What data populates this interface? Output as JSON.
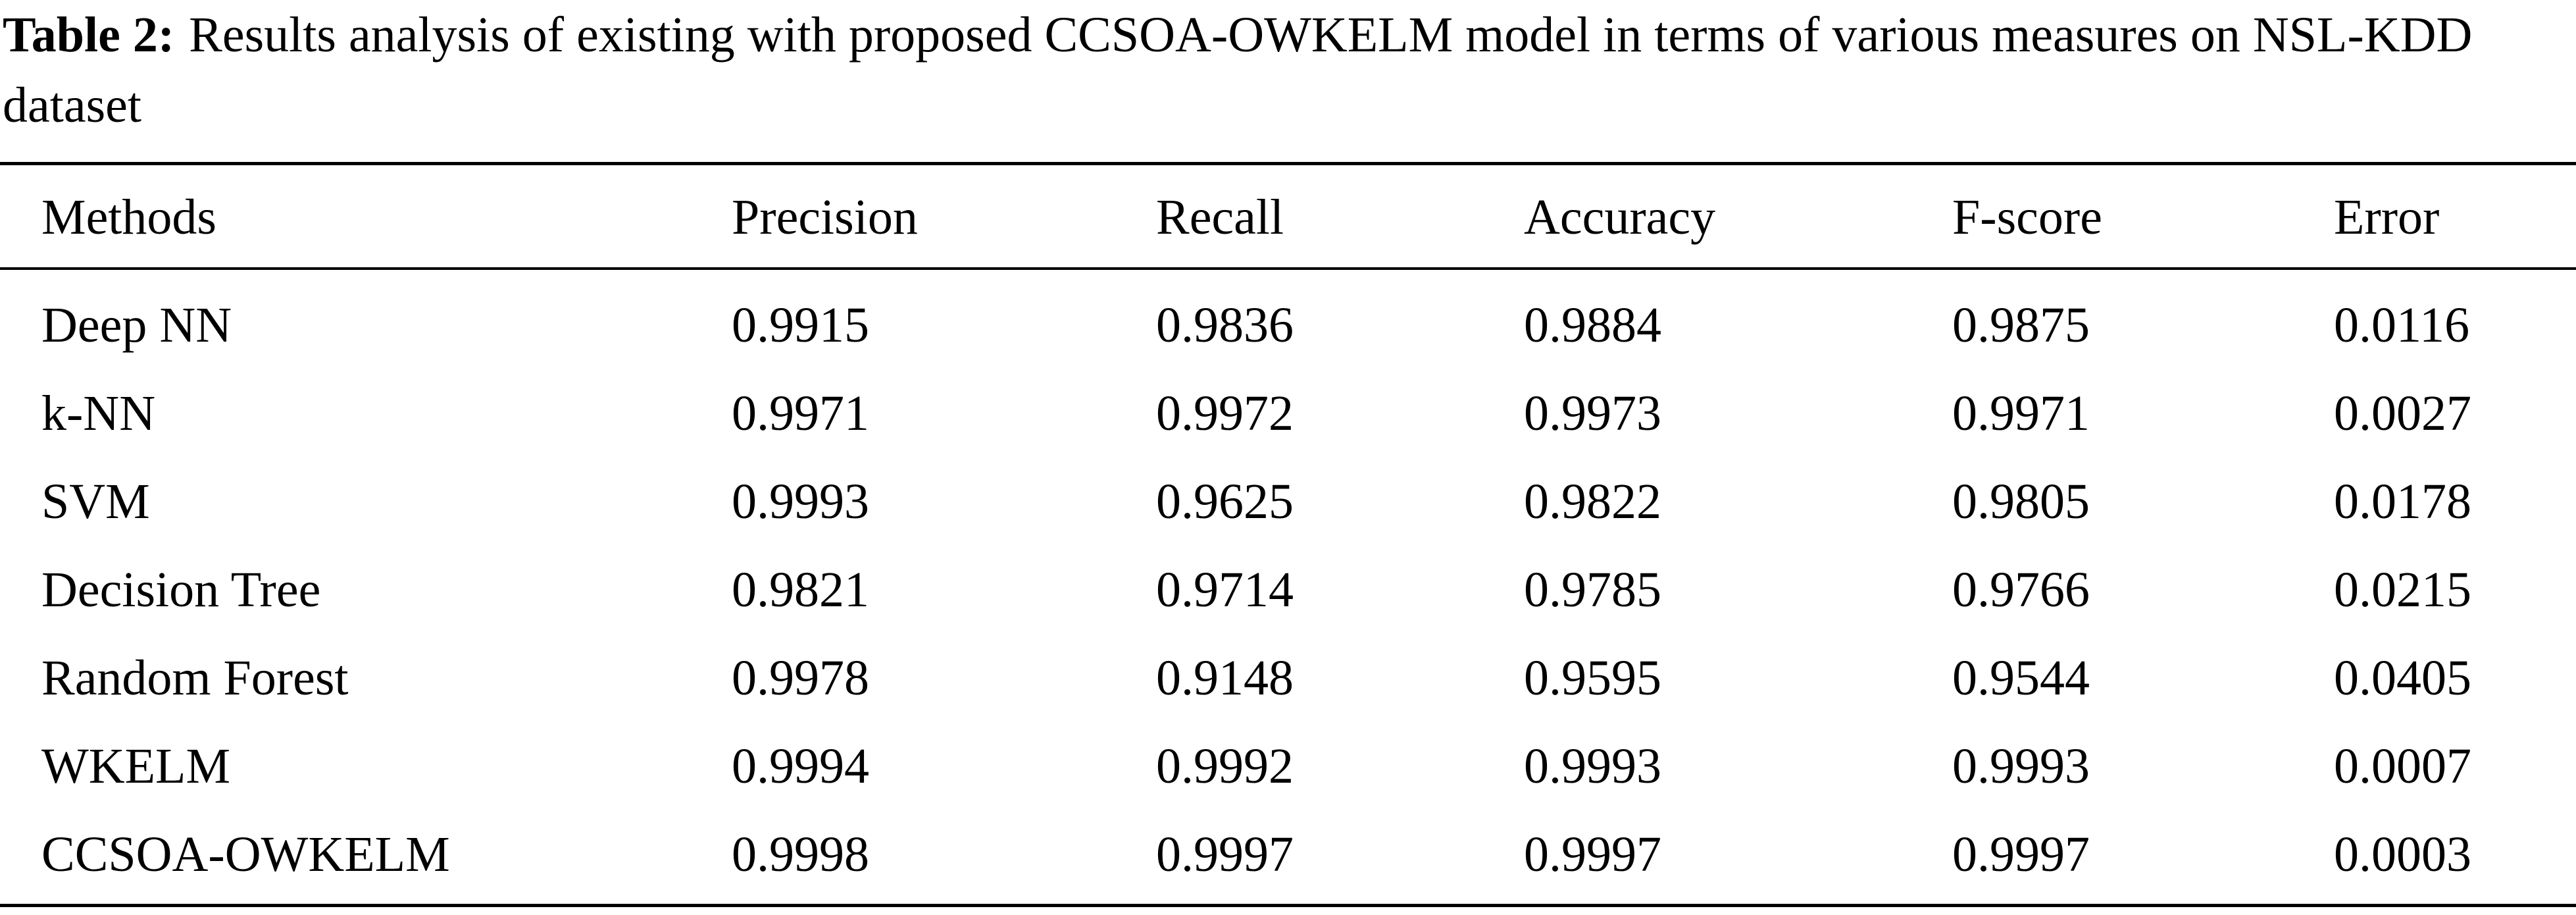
{
  "caption": {
    "label": "Table 2:",
    "text": "Results analysis of existing with proposed CCSOA-OWKELM model in terms of various measures on NSL-KDD dataset"
  },
  "table": {
    "headers": [
      "Methods",
      "Precision",
      "Recall",
      "Accuracy",
      "F-score",
      "Error"
    ],
    "rows": [
      [
        "Deep NN",
        "0.9915",
        "0.9836",
        "0.9884",
        "0.9875",
        "0.0116"
      ],
      [
        "k-NN",
        "0.9971",
        "0.9972",
        "0.9973",
        "0.9971",
        "0.0027"
      ],
      [
        "SVM",
        "0.9993",
        "0.9625",
        "0.9822",
        "0.9805",
        "0.0178"
      ],
      [
        "Decision Tree",
        "0.9821",
        "0.9714",
        "0.9785",
        "0.9766",
        "0.0215"
      ],
      [
        "Random Forest",
        "0.9978",
        "0.9148",
        "0.9595",
        "0.9544",
        "0.0405"
      ],
      [
        "WKELM",
        "0.9994",
        "0.9992",
        "0.9993",
        "0.9993",
        "0.0007"
      ],
      [
        "CCSOA-OWKELM",
        "0.9998",
        "0.9997",
        "0.9997",
        "0.9997",
        "0.0003"
      ]
    ]
  }
}
